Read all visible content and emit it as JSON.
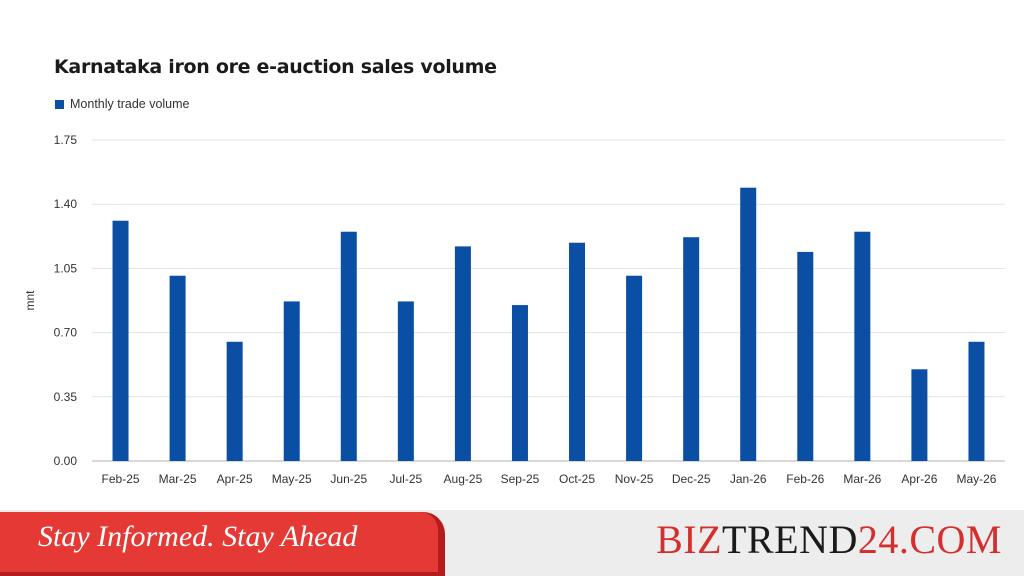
{
  "chart_data": {
    "type": "bar",
    "title": "Karnataka iron ore e-auction sales volume",
    "ylabel": "mnt",
    "xlabel": "",
    "ylim": [
      0,
      1.75
    ],
    "yticks": [
      "0.00",
      "0.35",
      "0.70",
      "1.05",
      "1.40",
      "1.75"
    ],
    "grid": true,
    "legend_position": "top-left",
    "categories": [
      "Feb-25",
      "Mar-25",
      "Apr-25",
      "May-25",
      "Jun-25",
      "Jul-25",
      "Aug-25",
      "Sep-25",
      "Oct-25",
      "Nov-25",
      "Dec-25",
      "Jan-26",
      "Feb-26",
      "Mar-26",
      "Apr-26",
      "May-26"
    ],
    "series": [
      {
        "name": "Monthly trade volume",
        "color": "#0b4fa5",
        "values": [
          1.31,
          1.01,
          0.65,
          0.87,
          1.25,
          0.87,
          1.17,
          0.85,
          1.19,
          1.01,
          1.22,
          1.49,
          1.14,
          1.25,
          0.5,
          0.65
        ]
      }
    ]
  },
  "footer": {
    "tagline": "Stay Informed. Stay Ahead",
    "brand_parts": [
      {
        "text": "BIZ",
        "color": "#d32f2f"
      },
      {
        "text": "TREND",
        "color": "#1a1a1a"
      },
      {
        "text": "24.COM",
        "color": "#d32f2f"
      }
    ]
  }
}
